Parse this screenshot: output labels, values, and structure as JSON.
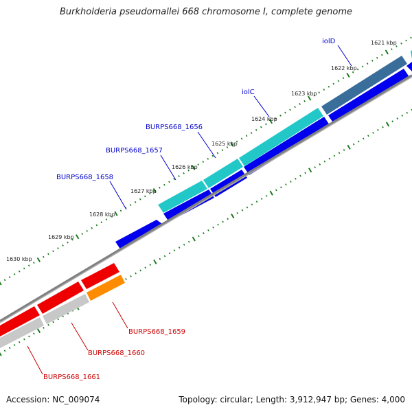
{
  "title": "Burkholderia pseudomallei 668 chromosome I, complete genome",
  "footer": {
    "accession": "Accession: NC_009074",
    "summary": "Topology: circular; Length: 3,912,947 bp; Genes: 4,000"
  },
  "scale_labels": [
    "1621 kbp",
    "1622 kbp",
    "1623 kbp",
    "1624 kbp",
    "1625 kbp",
    "1626 kbp",
    "1627 kbp",
    "1628 kbp",
    "1629 kbp",
    "1630 kbp"
  ],
  "gene_labels": [
    {
      "text": "iolD",
      "strand": "forward"
    },
    {
      "text": "iolC",
      "strand": "forward"
    },
    {
      "text": "BURPS668_1656",
      "strand": "forward"
    },
    {
      "text": "BURPS668_1657",
      "strand": "forward"
    },
    {
      "text": "BURPS668_1658",
      "strand": "forward"
    },
    {
      "text": "BURPS668_1659",
      "strand": "reverse"
    },
    {
      "text": "BURPS668_1660",
      "strand": "reverse"
    },
    {
      "text": "BURPS668_1661",
      "strand": "reverse"
    }
  ],
  "colors": {
    "forward_label": "#0000cc",
    "reverse_label": "#cc0000",
    "cds_forward": "#0000ee",
    "gene_forward": "#22c8c8",
    "gene_forward_dark": "#3a6e9a",
    "cds_reverse": "#ee0000",
    "gene_reverse": "#c8c8c8",
    "gene_reverse_orange": "#ff8c00",
    "backbone": "#808080",
    "tick": "#1a7a1a"
  }
}
